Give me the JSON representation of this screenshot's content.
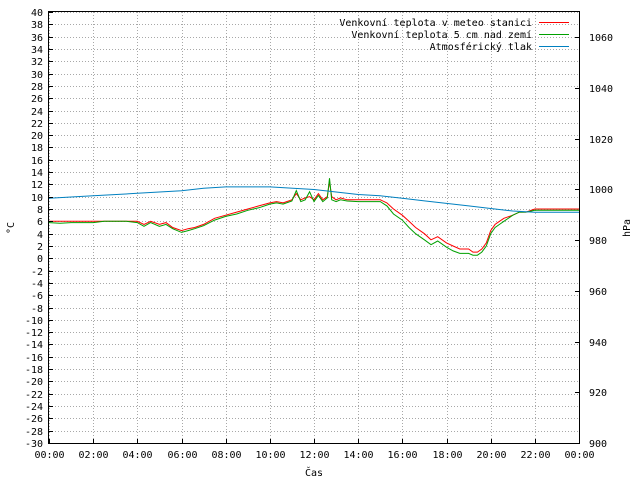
{
  "chart_data": {
    "type": "line",
    "xlabel": "Čas",
    "ylabel": "°C",
    "y2label": "hPa",
    "xlim": [
      0,
      24
    ],
    "ylim": [
      -30,
      40
    ],
    "y2lim": [
      900,
      1070
    ],
    "x_ticks": [
      "00:00",
      "02:00",
      "04:00",
      "06:00",
      "08:00",
      "10:00",
      "12:00",
      "14:00",
      "16:00",
      "18:00",
      "20:00",
      "22:00",
      "00:00"
    ],
    "y_ticks": [
      -30,
      -28,
      -26,
      -24,
      -22,
      -20,
      -18,
      -16,
      -14,
      -12,
      -10,
      -8,
      -6,
      -4,
      -2,
      0,
      2,
      4,
      6,
      8,
      10,
      12,
      14,
      16,
      18,
      20,
      22,
      24,
      26,
      28,
      30,
      32,
      34,
      36,
      38,
      40
    ],
    "y2_ticks": [
      900,
      920,
      940,
      960,
      980,
      1000,
      1020,
      1040,
      1060
    ],
    "grid": true,
    "legend_position": "top-right",
    "series": [
      {
        "name": "Venkovní teplota v meteo stanici",
        "color": "#ff0000",
        "axis": "left",
        "x": [
          0,
          0.5,
          1,
          1.5,
          2,
          2.5,
          3,
          3.5,
          4,
          4.3,
          4.6,
          5,
          5.3,
          5.6,
          6,
          6.3,
          6.6,
          7,
          7.5,
          8,
          8.5,
          9,
          9.5,
          10,
          10.3,
          10.6,
          11,
          11.2,
          11.4,
          11.6,
          11.8,
          12,
          12.2,
          12.4,
          12.6,
          12.7,
          12.8,
          13,
          13.2,
          13.5,
          14,
          14.5,
          15,
          15.3,
          15.6,
          16,
          16.3,
          16.6,
          17,
          17.3,
          17.6,
          18,
          18.3,
          18.6,
          19,
          19.2,
          19.4,
          19.6,
          19.8,
          20,
          20.2,
          20.4,
          20.6,
          21,
          21.3,
          21.6,
          22,
          22.5,
          23,
          23.5,
          24
        ],
        "y": [
          6,
          6,
          6,
          6,
          6,
          6,
          6,
          6,
          6,
          5.5,
          6,
          5.5,
          5.8,
          5,
          4.5,
          4.8,
          5,
          5.5,
          6.5,
          7,
          7.5,
          8,
          8.5,
          9,
          9.2,
          9,
          9.5,
          10.5,
          9.5,
          9.8,
          10,
          9.5,
          10.5,
          9.5,
          10,
          12.5,
          10,
          9.5,
          9.8,
          9.5,
          9.5,
          9.5,
          9.5,
          9,
          8,
          7,
          6,
          5,
          4,
          3,
          3.5,
          2.5,
          2,
          1.5,
          1.5,
          1,
          1,
          1.5,
          2.5,
          4.5,
          5.5,
          6,
          6.5,
          7,
          7.5,
          7.5,
          8,
          8,
          8,
          8,
          8
        ]
      },
      {
        "name": "Venkovní teplota 5 cm nad zemí",
        "color": "#00a000",
        "axis": "left",
        "x": [
          0,
          0.5,
          1,
          1.5,
          2,
          2.5,
          3,
          3.5,
          4,
          4.3,
          4.6,
          5,
          5.3,
          5.6,
          6,
          6.3,
          6.6,
          7,
          7.5,
          8,
          8.5,
          9,
          9.5,
          10,
          10.3,
          10.6,
          11,
          11.2,
          11.4,
          11.6,
          11.8,
          12,
          12.2,
          12.4,
          12.6,
          12.7,
          12.8,
          13,
          13.2,
          13.5,
          14,
          14.5,
          15,
          15.3,
          15.6,
          16,
          16.3,
          16.6,
          17,
          17.3,
          17.6,
          18,
          18.3,
          18.6,
          19,
          19.2,
          19.4,
          19.6,
          19.8,
          20,
          20.2,
          20.4,
          20.6,
          21,
          21.3,
          21.6,
          22,
          22.5,
          23,
          23.5,
          24
        ],
        "y": [
          5.8,
          5.7,
          5.8,
          5.8,
          5.8,
          6,
          6,
          6,
          5.8,
          5.2,
          5.8,
          5.2,
          5.5,
          4.8,
          4.2,
          4.5,
          4.8,
          5.3,
          6.2,
          6.8,
          7.2,
          7.8,
          8.2,
          8.8,
          9,
          8.8,
          9.3,
          11,
          9.2,
          9.5,
          10.8,
          9.2,
          10.2,
          9.2,
          9.8,
          13,
          9.5,
          9.2,
          9.5,
          9.3,
          9.2,
          9.2,
          9.2,
          8.5,
          7.2,
          6.2,
          5,
          4,
          3,
          2.2,
          2.8,
          1.8,
          1.2,
          0.8,
          0.8,
          0.5,
          0.5,
          1,
          2,
          4,
          5,
          5.5,
          6,
          7,
          7.5,
          7.5,
          7.8,
          7.8,
          7.8,
          7.8,
          7.8
        ]
      },
      {
        "name": "Atmosférický tlak",
        "color": "#0080c0",
        "axis": "right",
        "x": [
          0,
          2,
          4,
          6,
          7,
          8,
          10,
          12,
          13,
          14,
          15,
          16,
          17,
          18,
          19,
          20,
          21,
          22,
          23,
          24
        ],
        "y": [
          996.5,
          997.5,
          998.5,
          999.5,
          1000.5,
          1001,
          1001,
          1000,
          999,
          998,
          997.5,
          996.5,
          995.5,
          994.5,
          993.5,
          992.5,
          991.5,
          991,
          991,
          991
        ]
      }
    ]
  }
}
